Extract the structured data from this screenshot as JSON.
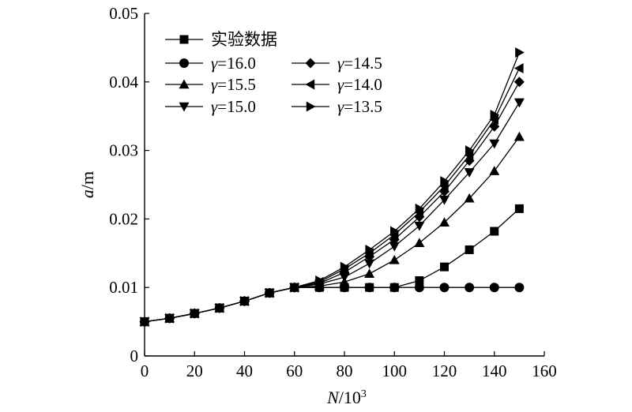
{
  "chart_data": {
    "type": "line",
    "xlabel": "N/10^3",
    "ylabel": "a/m",
    "xlim": [
      0,
      160
    ],
    "ylim": [
      0,
      0.05
    ],
    "xticks": [
      "0",
      "20",
      "40",
      "60",
      "80",
      "100",
      "120",
      "140",
      "160"
    ],
    "yticks": [
      "0",
      "0.01",
      "0.02",
      "0.03",
      "0.04",
      "0.05"
    ],
    "grid": false,
    "legend_position": "top-left",
    "series": [
      {
        "name": "实验数据",
        "marker": "square",
        "x": [
          0,
          10,
          20,
          30,
          40,
          50,
          60,
          70,
          80,
          90,
          100,
          110,
          120,
          130,
          140,
          150
        ],
        "values": [
          0.005,
          0.0055,
          0.0062,
          0.007,
          0.008,
          0.0092,
          0.01,
          0.01,
          0.01,
          0.01,
          0.01,
          0.011,
          0.013,
          0.0155,
          0.0182,
          0.0215
        ]
      },
      {
        "name": "γ=16.0",
        "marker": "circle",
        "x": [
          0,
          10,
          20,
          30,
          40,
          50,
          60,
          70,
          80,
          90,
          100,
          110,
          120,
          130,
          140,
          150
        ],
        "values": [
          0.005,
          0.0055,
          0.0062,
          0.007,
          0.008,
          0.0092,
          0.01,
          0.01,
          0.01,
          0.01,
          0.01,
          0.01,
          0.01,
          0.01,
          0.01,
          0.01
        ]
      },
      {
        "name": "γ=15.5",
        "marker": "triangle-up",
        "x": [
          0,
          10,
          20,
          30,
          40,
          50,
          60,
          70,
          80,
          90,
          100,
          110,
          120,
          130,
          140,
          150
        ],
        "values": [
          0.005,
          0.0055,
          0.0062,
          0.007,
          0.008,
          0.0092,
          0.01,
          0.0102,
          0.0108,
          0.012,
          0.014,
          0.0165,
          0.0195,
          0.023,
          0.027,
          0.032
        ]
      },
      {
        "name": "γ=15.0",
        "marker": "triangle-down",
        "x": [
          0,
          10,
          20,
          30,
          40,
          50,
          60,
          70,
          80,
          90,
          100,
          110,
          120,
          130,
          140,
          150
        ],
        "values": [
          0.005,
          0.0055,
          0.0062,
          0.007,
          0.008,
          0.0092,
          0.01,
          0.0105,
          0.0115,
          0.0135,
          0.016,
          0.019,
          0.0228,
          0.0268,
          0.031,
          0.037
        ]
      },
      {
        "name": "γ=14.5",
        "marker": "diamond",
        "x": [
          0,
          10,
          20,
          30,
          40,
          50,
          60,
          70,
          80,
          90,
          100,
          110,
          120,
          130,
          140,
          150
        ],
        "values": [
          0.005,
          0.0055,
          0.0062,
          0.007,
          0.008,
          0.0092,
          0.01,
          0.0106,
          0.0122,
          0.0145,
          0.017,
          0.0203,
          0.024,
          0.0285,
          0.0335,
          0.04
        ]
      },
      {
        "name": "γ=14.0",
        "marker": "triangle-left",
        "x": [
          0,
          10,
          20,
          30,
          40,
          50,
          60,
          70,
          80,
          90,
          100,
          110,
          120,
          130,
          140,
          150
        ],
        "values": [
          0.005,
          0.0055,
          0.0062,
          0.007,
          0.008,
          0.0092,
          0.01,
          0.0108,
          0.0127,
          0.015,
          0.0177,
          0.021,
          0.0248,
          0.0293,
          0.0345,
          0.042
        ]
      },
      {
        "name": "γ=13.5",
        "marker": "triangle-right",
        "x": [
          0,
          10,
          20,
          30,
          40,
          50,
          60,
          70,
          80,
          90,
          100,
          110,
          120,
          130,
          140,
          150
        ],
        "values": [
          0.005,
          0.0055,
          0.0062,
          0.007,
          0.008,
          0.0092,
          0.01,
          0.011,
          0.013,
          0.0155,
          0.0182,
          0.0215,
          0.0255,
          0.03,
          0.0352,
          0.0443
        ]
      }
    ]
  }
}
